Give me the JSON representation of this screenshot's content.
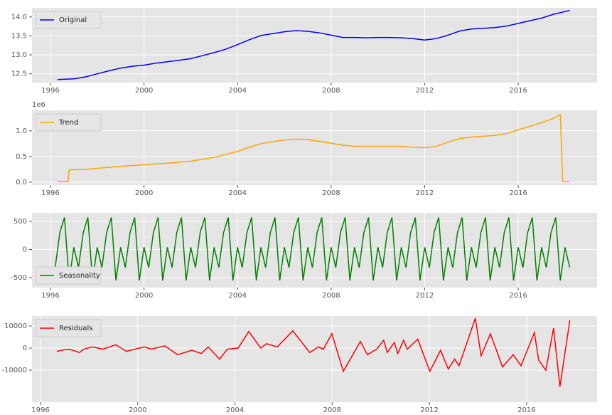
{
  "chart_data": [
    {
      "type": "line",
      "legend": "upper left",
      "grid": true,
      "x": [
        1996.3,
        1997,
        1997.5,
        1998,
        1998.5,
        1999,
        1999.5,
        2000,
        2000.5,
        2001,
        2001.5,
        2002,
        2002.5,
        2003,
        2003.5,
        2004,
        2004.5,
        2005,
        2005.5,
        2006,
        2006.5,
        2007,
        2007.5,
        2008,
        2008.5,
        2009,
        2009.5,
        2010,
        2010.5,
        2011,
        2011.5,
        2012,
        2012.5,
        2013,
        2013.5,
        2014,
        2014.5,
        2015,
        2015.5,
        2016,
        2016.5,
        2017,
        2017.5,
        2018.2
      ],
      "series": [
        {
          "name": "Original",
          "color": "#0000ff",
          "values": [
            12.35,
            12.37,
            12.42,
            12.5,
            12.58,
            12.65,
            12.7,
            12.73,
            12.78,
            12.82,
            12.86,
            12.9,
            12.98,
            13.06,
            13.15,
            13.27,
            13.4,
            13.51,
            13.56,
            13.61,
            13.64,
            13.62,
            13.58,
            13.52,
            13.46,
            13.46,
            13.45,
            13.46,
            13.46,
            13.45,
            13.43,
            13.39,
            13.43,
            13.52,
            13.63,
            13.68,
            13.7,
            13.72,
            13.76,
            13.83,
            13.9,
            13.97,
            14.07,
            14.17
          ]
        }
      ],
      "xlim": [
        1995.21,
        2019.37
      ],
      "xticks": [
        1996,
        2000,
        2004,
        2008,
        2012,
        2016
      ],
      "ylim": [
        12.27,
        14.24
      ],
      "yticks": [
        12.5,
        {
          "value": 13,
          "label": "13.0"
        },
        13.5,
        {
          "value": 14,
          "label": "14.0"
        }
      ]
    },
    {
      "type": "line",
      "legend": "upper left",
      "grid": true,
      "offset_label": "1e6",
      "x": [
        1996.3,
        1996.75,
        1996.8,
        1997.5,
        1998,
        1999,
        2000,
        2001,
        2002,
        2003,
        2004,
        2004.5,
        2005,
        2005.5,
        2006,
        2006.5,
        2007,
        2008,
        2008.5,
        2009,
        2010,
        2011,
        2011.5,
        2012,
        2012.5,
        2013,
        2013.5,
        2014,
        2015,
        2015.5,
        2016,
        2016.5,
        2017,
        2017.5,
        2017.8,
        2017.9,
        2018.2
      ],
      "series": [
        {
          "name": "Trend",
          "color": "#ffa500",
          "values": [
            0.01,
            0.01,
            0.24,
            0.25,
            0.27,
            0.31,
            0.34,
            0.37,
            0.41,
            0.48,
            0.6,
            0.68,
            0.75,
            0.79,
            0.82,
            0.84,
            0.83,
            0.76,
            0.72,
            0.7,
            0.7,
            0.7,
            0.68,
            0.67,
            0.7,
            0.78,
            0.85,
            0.88,
            0.91,
            0.95,
            1.02,
            1.09,
            1.16,
            1.24,
            1.32,
            0.01,
            0.01
          ]
        }
      ],
      "xlim": [
        1995.21,
        2019.37
      ],
      "xticks": [
        1996,
        2000,
        2004,
        2008,
        2012,
        2016
      ],
      "ylim": [
        -0.056,
        1.4
      ],
      "yticks": [
        {
          "value": 0,
          "label": "0.0"
        },
        0.5,
        {
          "value": 1,
          "label": "1.0"
        }
      ]
    },
    {
      "type": "line",
      "legend": "lower left",
      "grid": true,
      "x": [
        1996.2,
        1996.4,
        1996.6,
        1996.8,
        1997,
        1997.2,
        1997.4,
        1997.6,
        1997.8,
        1998,
        1998.2,
        1998.4,
        1998.6,
        1998.8,
        1999,
        1999.2,
        1999.4,
        1999.6,
        1999.8,
        2000,
        2000.2,
        2000.4,
        2000.6,
        2000.8,
        2001,
        2001.2,
        2001.4,
        2001.6,
        2001.8,
        2002,
        2002.2,
        2002.4,
        2002.6,
        2002.8,
        2003,
        2003.2,
        2003.4,
        2003.6,
        2003.8,
        2004,
        2004.2,
        2004.4,
        2004.6,
        2004.8,
        2005,
        2005.2,
        2005.4,
        2005.6,
        2005.8,
        2006,
        2006.2,
        2006.4,
        2006.6,
        2006.8,
        2007,
        2007.2,
        2007.4,
        2007.6,
        2007.8,
        2008,
        2008.2,
        2008.4,
        2008.6,
        2008.8,
        2009,
        2009.2,
        2009.4,
        2009.6,
        2009.8,
        2010,
        2010.2,
        2010.4,
        2010.6,
        2010.8,
        2011,
        2011.2,
        2011.4,
        2011.6,
        2011.8,
        2012,
        2012.2,
        2012.4,
        2012.6,
        2012.8,
        2013,
        2013.2,
        2013.4,
        2013.6,
        2013.8,
        2014,
        2014.2,
        2014.4,
        2014.6,
        2014.8,
        2015,
        2015.2,
        2015.4,
        2015.6,
        2015.8,
        2016,
        2016.2,
        2016.4,
        2016.6,
        2016.8,
        2017,
        2017.2,
        2017.4,
        2017.6,
        2017.8,
        2018,
        2018.2
      ],
      "series": [
        {
          "name": "Seasonality",
          "color": "#008000",
          "values": [
            -320,
            300,
            570,
            -550,
            40,
            -320,
            300,
            570,
            -550,
            40,
            -320,
            300,
            570,
            -550,
            40,
            -320,
            300,
            570,
            -550,
            40,
            -320,
            300,
            570,
            -550,
            40,
            -320,
            300,
            570,
            -550,
            40,
            -320,
            300,
            570,
            -550,
            40,
            -320,
            300,
            570,
            -550,
            40,
            -320,
            300,
            570,
            -550,
            40,
            -320,
            300,
            570,
            -550,
            40,
            -320,
            300,
            570,
            -550,
            40,
            -320,
            300,
            570,
            -550,
            40,
            -320,
            300,
            570,
            -550,
            40,
            -320,
            300,
            570,
            -550,
            40,
            -320,
            300,
            570,
            -550,
            40,
            -320,
            300,
            570,
            -550,
            40,
            -320,
            300,
            570,
            -550,
            40,
            -320,
            300,
            570,
            -550,
            40,
            -320,
            300,
            570,
            -550,
            40,
            -320,
            300,
            570,
            -550,
            40,
            -320,
            300,
            570,
            -550,
            40,
            -320,
            300,
            570,
            -550,
            40,
            -320
          ]
        }
      ],
      "xlim": [
        1995.21,
        2019.37
      ],
      "xticks": [
        1996,
        2000,
        2004,
        2008,
        2012,
        2016
      ],
      "ylim": [
        -677,
        652
      ],
      "yticks": [
        -500,
        0,
        500
      ]
    },
    {
      "type": "line",
      "legend": "upper left",
      "grid": true,
      "x": [
        1996.67,
        1996.96,
        1997.17,
        1997.61,
        1997.78,
        1998.13,
        1998.57,
        1999.1,
        1999.54,
        1999.89,
        2000.27,
        2000.56,
        2001.12,
        2001.64,
        2001.94,
        2002.23,
        2002.61,
        2002.9,
        2003.37,
        2003.69,
        2004.13,
        2004.57,
        2005.06,
        2005.3,
        2005.74,
        2006.38,
        2007.08,
        2007.43,
        2007.64,
        2007.99,
        2008.46,
        2009.16,
        2009.45,
        2009.83,
        2010.12,
        2010.27,
        2010.56,
        2010.7,
        2010.94,
        2011.09,
        2011.52,
        2012.02,
        2012.46,
        2012.78,
        2013.04,
        2013.22,
        2013.89,
        2014.13,
        2014.51,
        2015.01,
        2015.45,
        2015.77,
        2016.32,
        2016.5,
        2016.79,
        2017.11,
        2017.37,
        2017.78
      ],
      "series": [
        {
          "name": "Residuals",
          "color": "#ff0000",
          "values": [
            -1500,
            -800,
            -500,
            -2000,
            -500,
            500,
            -500,
            1500,
            -1500,
            -500,
            500,
            -500,
            1000,
            -3000,
            -2000,
            -1000,
            -2500,
            500,
            -5000,
            -500,
            0,
            7500,
            0,
            2000,
            500,
            7800,
            -2000,
            500,
            -500,
            6500,
            -10500,
            3000,
            -3000,
            -500,
            3500,
            -2000,
            2500,
            -2500,
            3500,
            -500,
            4000,
            -10500,
            -1000,
            -9500,
            -5000,
            -8000,
            13500,
            -3500,
            6500,
            -8500,
            -3000,
            -8000,
            7000,
            -5500,
            -10000,
            9000,
            -17500,
            12500
          ]
        }
      ],
      "xlim": [
        1995.65,
        2018.9
      ],
      "xticks": [
        1996,
        2000,
        2004,
        2008,
        2012,
        2016
      ],
      "ylim": [
        -24500,
        14500
      ],
      "yticks": [
        -10000,
        0,
        10000
      ]
    }
  ]
}
